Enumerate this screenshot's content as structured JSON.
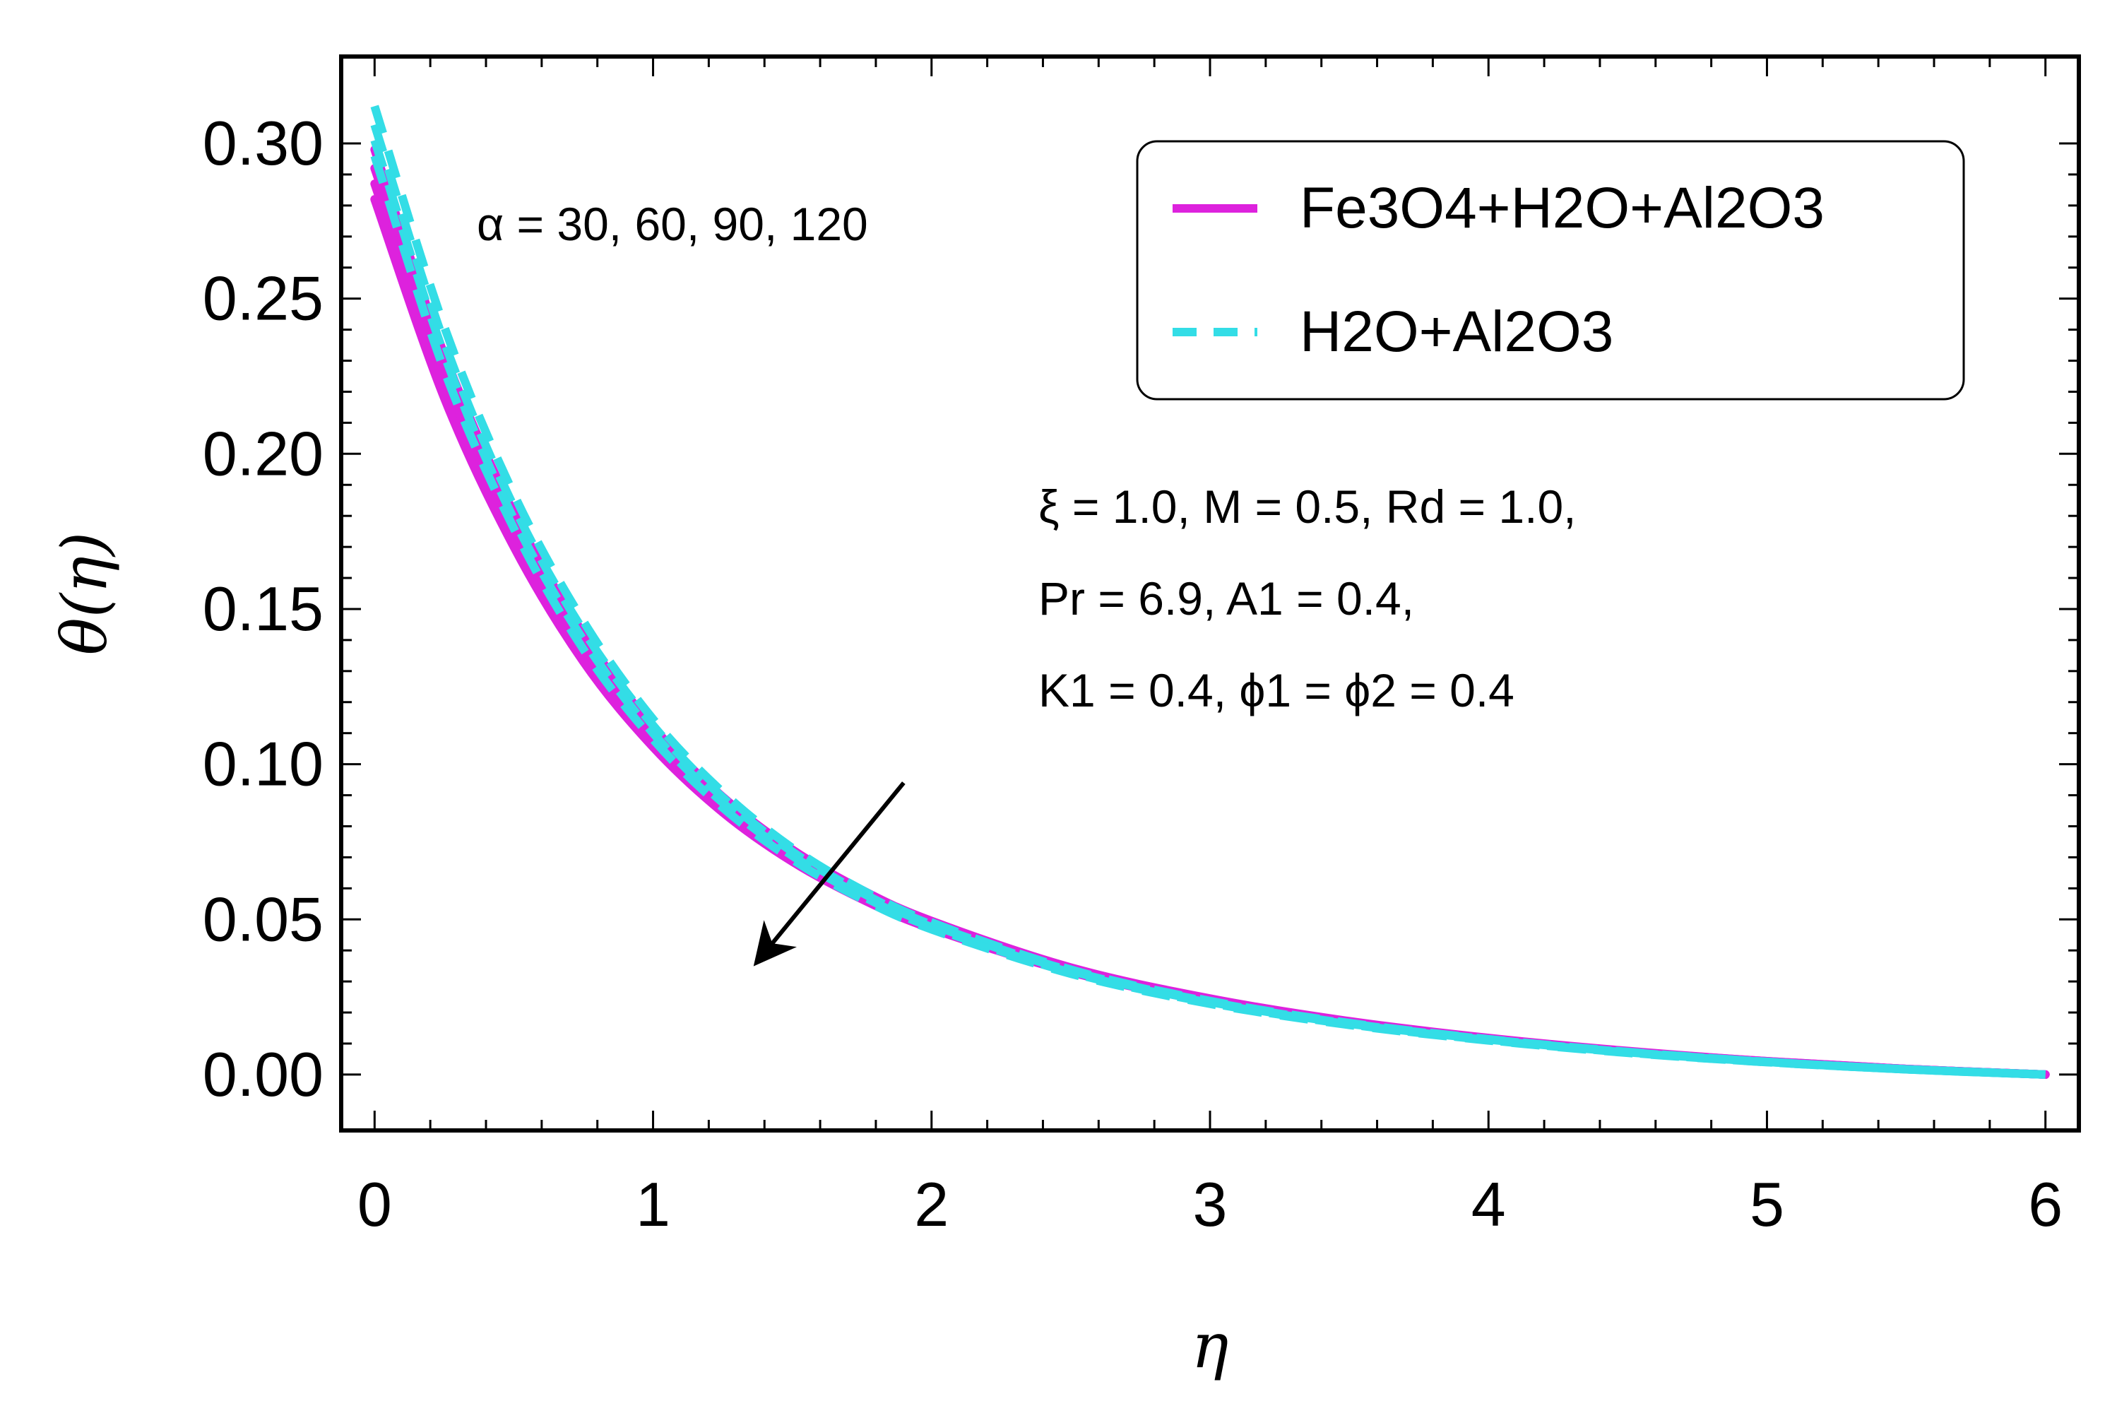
{
  "chart_data": {
    "type": "line",
    "xlabel": "η",
    "ylabel": "θ(η)",
    "xlim": [
      -0.12,
      6.12
    ],
    "ylim": [
      -0.018,
      0.328
    ],
    "xticks": [
      0,
      1,
      2,
      3,
      4,
      5,
      6
    ],
    "xtick_labels": [
      "0",
      "1",
      "2",
      "3",
      "4",
      "5",
      "6"
    ],
    "yticks": [
      0.0,
      0.05,
      0.1,
      0.15,
      0.2,
      0.25,
      0.3
    ],
    "ytick_labels": [
      "0.00",
      "0.05",
      "0.10",
      "0.15",
      "0.20",
      "0.25",
      "0.30"
    ],
    "grid": false,
    "legend_position": "top-right",
    "legend": [
      {
        "label": "Fe3O4+H2O+Al2O3",
        "color": "#dd22dd",
        "style": "solid"
      },
      {
        "label": "H2O+Al2O3",
        "color": "#33dde6",
        "style": "dashed"
      }
    ],
    "x": [
      0,
      0.25,
      0.5,
      0.75,
      1.0,
      1.25,
      1.5,
      1.75,
      2.0,
      2.5,
      3.0,
      3.5,
      4.0,
      4.5,
      5.0,
      5.5,
      6.0
    ],
    "series": [
      {
        "group": "Fe3O4+H2O+Al2O3",
        "alpha": "30",
        "color": "#dd22dd",
        "style": "solid",
        "values": [
          0.298,
          0.232,
          0.181,
          0.142,
          0.112,
          0.0895,
          0.0725,
          0.0595,
          0.0495,
          0.0345,
          0.0245,
          0.0172,
          0.0118,
          0.0076,
          0.0043,
          0.0018,
          0.0
        ]
      },
      {
        "group": "Fe3O4+H2O+Al2O3",
        "alpha": "60",
        "color": "#dd22dd",
        "style": "solid",
        "values": [
          0.292,
          0.227,
          0.177,
          0.139,
          0.11,
          0.0877,
          0.0712,
          0.0585,
          0.0487,
          0.034,
          0.0242,
          0.017,
          0.0117,
          0.0075,
          0.0043,
          0.0018,
          0.0
        ]
      },
      {
        "group": "Fe3O4+H2O+Al2O3",
        "alpha": "90",
        "color": "#dd22dd",
        "style": "solid",
        "values": [
          0.287,
          0.222,
          0.173,
          0.136,
          0.1075,
          0.086,
          0.0698,
          0.0575,
          0.0478,
          0.0335,
          0.0238,
          0.0168,
          0.0115,
          0.0074,
          0.0042,
          0.0018,
          0.0
        ]
      },
      {
        "group": "Fe3O4+H2O+Al2O3",
        "alpha": "120",
        "color": "#dd22dd",
        "style": "solid",
        "values": [
          0.282,
          0.218,
          0.17,
          0.133,
          0.1055,
          0.0845,
          0.0686,
          0.0565,
          0.047,
          0.033,
          0.0235,
          0.0166,
          0.0114,
          0.0073,
          0.0042,
          0.0018,
          0.0
        ]
      },
      {
        "group": "H2O+Al2O3",
        "alpha": "30",
        "color": "#33dde6",
        "style": "dashed",
        "values": [
          0.312,
          0.241,
          0.187,
          0.146,
          0.1145,
          0.091,
          0.073,
          0.0595,
          0.049,
          0.0338,
          0.0237,
          0.0166,
          0.0114,
          0.0073,
          0.0041,
          0.0017,
          0.0
        ]
      },
      {
        "group": "H2O+Al2O3",
        "alpha": "60",
        "color": "#33dde6",
        "style": "dashed",
        "values": [
          0.306,
          0.236,
          0.183,
          0.143,
          0.1125,
          0.0893,
          0.0718,
          0.0586,
          0.0483,
          0.0334,
          0.0234,
          0.0164,
          0.0113,
          0.0072,
          0.0041,
          0.0017,
          0.0
        ]
      },
      {
        "group": "H2O+Al2O3",
        "alpha": "90",
        "color": "#33dde6",
        "style": "dashed",
        "values": [
          0.301,
          0.232,
          0.179,
          0.14,
          0.11,
          0.0876,
          0.0705,
          0.0576,
          0.0475,
          0.0329,
          0.0231,
          0.0162,
          0.0111,
          0.0071,
          0.004,
          0.0017,
          0.0
        ]
      },
      {
        "group": "H2O+Al2O3",
        "alpha": "120",
        "color": "#33dde6",
        "style": "dashed",
        "values": [
          0.296,
          0.227,
          0.176,
          0.137,
          0.108,
          0.086,
          0.0693,
          0.0566,
          0.0468,
          0.0325,
          0.0228,
          0.016,
          0.011,
          0.007,
          0.004,
          0.0017,
          0.0
        ]
      }
    ],
    "annotations": {
      "alpha": "α = 30, 60, 90, 120",
      "params_line1": "ξ = 1.0, M = 0.5, Rd = 1.0,",
      "params_line2": "Pr = 6.9, A1 = 0.4,",
      "params_line3": "K1 = 0.4, ϕ1 = ϕ2 = 0.4"
    },
    "arrow": {
      "from": [
        1.9,
        0.094
      ],
      "to": [
        1.38,
        0.037
      ],
      "meaning": "increasing α"
    }
  }
}
